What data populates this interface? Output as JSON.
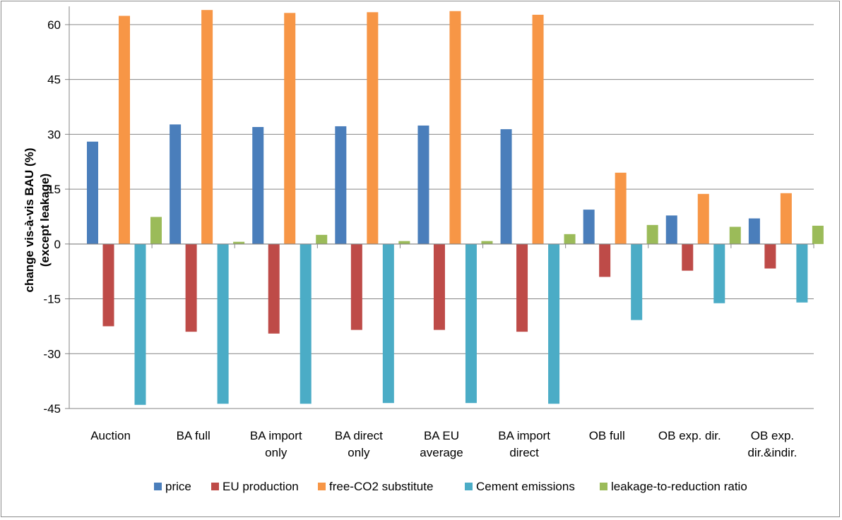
{
  "chart_data": {
    "type": "bar",
    "title": "",
    "ylabel_line1": "change vis-à-vis BAU  (%)",
    "ylabel_line2": "(except leakage)",
    "ylim": [
      -45,
      65
    ],
    "yticks": [
      -45,
      -30,
      -15,
      0,
      15,
      30,
      45,
      60
    ],
    "grid": true,
    "legend_position": "bottom",
    "categories": [
      [
        "Auction"
      ],
      [
        "BA full"
      ],
      [
        "BA import",
        "only"
      ],
      [
        "BA direct",
        "only"
      ],
      [
        "BA EU",
        "average"
      ],
      [
        "BA import",
        "direct"
      ],
      [
        "OB full"
      ],
      [
        "OB exp. dir."
      ],
      [
        "OB exp.",
        "dir.&indir."
      ]
    ],
    "series": [
      {
        "name": "price",
        "color": "#4a7ebb",
        "values": [
          28,
          32.7,
          32,
          32.2,
          32.4,
          31.4,
          9.4,
          7.8,
          7
        ]
      },
      {
        "name": "EU production",
        "color": "#be4b48",
        "values": [
          -22.5,
          -24,
          -24.5,
          -23.5,
          -23.5,
          -24,
          -9,
          -7.3,
          -6.7
        ]
      },
      {
        "name": "free-CO2 substitute",
        "color": "#f79646",
        "values": [
          62.4,
          64,
          63.2,
          63.4,
          63.7,
          62.7,
          19.5,
          13.7,
          13.9
        ]
      },
      {
        "name": "Cement emissions",
        "color": "#4bacc6",
        "values": [
          -44,
          -43.7,
          -43.7,
          -43.5,
          -43.5,
          -43.7,
          -20.8,
          -16.2,
          -16
        ]
      },
      {
        "name": "leakage-to-reduction ratio",
        "color": "#9bbb59",
        "values": [
          7.4,
          0.6,
          2.5,
          0.8,
          0.8,
          2.7,
          5.2,
          4.7,
          5
        ]
      }
    ]
  }
}
